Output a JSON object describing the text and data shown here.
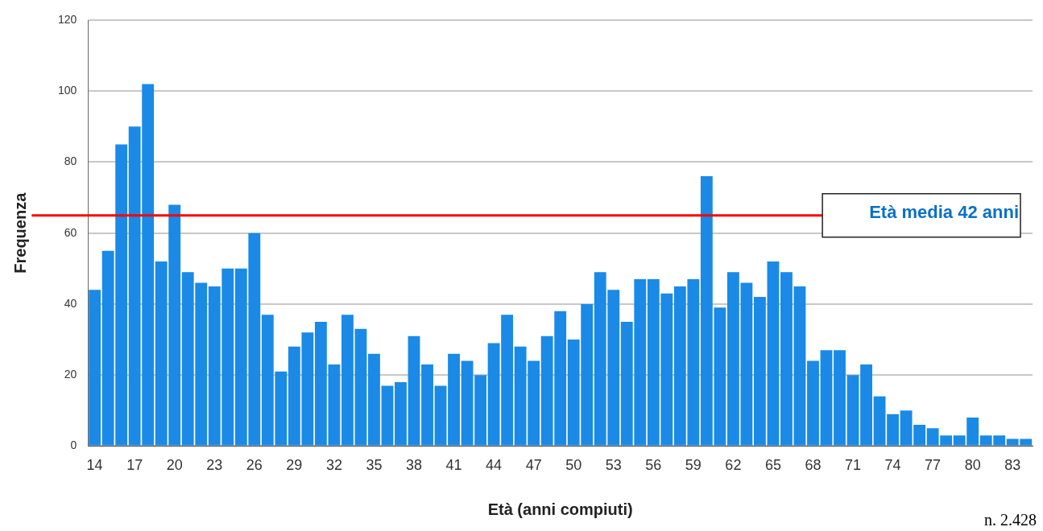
{
  "chart_data": {
    "type": "bar",
    "xlabel": "Età (anni compiuti)",
    "ylabel": "Frequenza",
    "categories": [
      "14",
      null,
      null,
      "17",
      null,
      null,
      "20",
      null,
      null,
      "23",
      null,
      null,
      "26",
      null,
      null,
      "29",
      null,
      null,
      "32",
      null,
      null,
      "35",
      null,
      null,
      "38",
      null,
      null,
      "41",
      null,
      null,
      "44",
      null,
      null,
      "47",
      null,
      null,
      "50",
      null,
      null,
      "53",
      null,
      null,
      "56",
      null,
      null,
      "59",
      null,
      null,
      "62",
      null,
      null,
      "65",
      null,
      null,
      "68",
      null,
      null,
      "71",
      null,
      null,
      "74",
      null,
      null,
      "77",
      null,
      null,
      "80",
      null,
      null,
      "83",
      null
    ],
    "values": [
      44,
      55,
      85,
      90,
      102,
      52,
      68,
      49,
      46,
      45,
      50,
      50,
      60,
      37,
      21,
      28,
      32,
      35,
      23,
      37,
      33,
      26,
      17,
      18,
      31,
      23,
      17,
      26,
      24,
      20,
      29,
      37,
      28,
      24,
      31,
      38,
      30,
      40,
      49,
      44,
      35,
      47,
      47,
      43,
      45,
      47,
      76,
      39,
      49,
      46,
      42,
      52,
      49,
      45,
      24,
      27,
      27,
      20,
      23,
      14,
      9,
      10,
      6,
      5,
      3,
      3,
      8,
      3,
      3,
      2,
      2
    ],
    "color": "#1a8ae6",
    "ylim": [
      0,
      120
    ],
    "yticks": [
      0,
      20,
      40,
      60,
      80,
      100,
      120
    ],
    "grid": "y",
    "ref_lines": [
      {
        "axis": "y",
        "value": 65,
        "label": "Età media 42 anni",
        "color": "#ff0000"
      }
    ],
    "annotations": [
      "n. 2.428"
    ]
  }
}
